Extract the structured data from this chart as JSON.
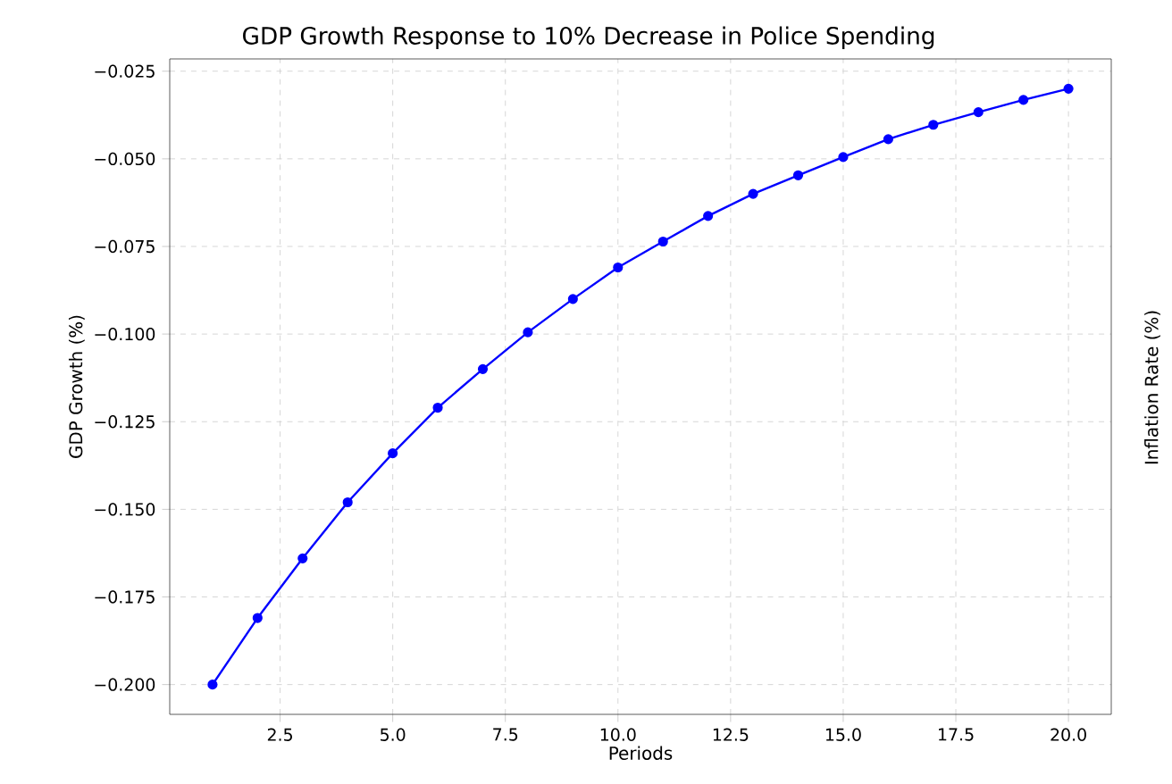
{
  "chart_data": {
    "type": "line",
    "title": "GDP Growth Response to 10% Decrease in Police Spending",
    "xlabel": "Periods",
    "ylabel": "GDP Growth (%)",
    "y2label": "Inflation Rate (%)",
    "x": [
      1,
      2,
      3,
      4,
      5,
      6,
      7,
      8,
      9,
      10,
      11,
      12,
      13,
      14,
      15,
      16,
      17,
      18,
      19,
      20
    ],
    "series": [
      {
        "color": "#0000ff",
        "values": [
          -0.2,
          -0.181,
          -0.164,
          -0.148,
          -0.134,
          -0.121,
          -0.11,
          -0.0995,
          -0.09,
          -0.081,
          -0.0736,
          -0.0663,
          -0.06,
          -0.0547,
          -0.0495,
          -0.0444,
          -0.0403,
          -0.0367,
          -0.0332,
          -0.03
        ]
      }
    ],
    "xlim": [
      0.05,
      20.95
    ],
    "ylim": [
      -0.2085,
      -0.0215
    ],
    "xticks": [
      {
        "value": 2.5,
        "label": "2.5"
      },
      {
        "value": 5,
        "label": "5.0"
      },
      {
        "value": 7.5,
        "label": "7.5"
      },
      {
        "value": 10,
        "label": "10.0"
      },
      {
        "value": 12.5,
        "label": "12.5"
      },
      {
        "value": 15,
        "label": "15.0"
      },
      {
        "value": 17.5,
        "label": "17.5"
      },
      {
        "value": 20,
        "label": "20.0"
      }
    ],
    "yticks": [
      {
        "value": -0.2,
        "label": "−0.200"
      },
      {
        "value": -0.175,
        "label": "−0.175"
      },
      {
        "value": -0.15,
        "label": "−0.150"
      },
      {
        "value": -0.125,
        "label": "−0.125"
      },
      {
        "value": -0.1,
        "label": "−0.100"
      },
      {
        "value": -0.075,
        "label": "−0.075"
      },
      {
        "value": -0.05,
        "label": "−0.050"
      },
      {
        "value": -0.025,
        "label": "−0.025"
      }
    ],
    "grid": true,
    "marker": "circle"
  }
}
